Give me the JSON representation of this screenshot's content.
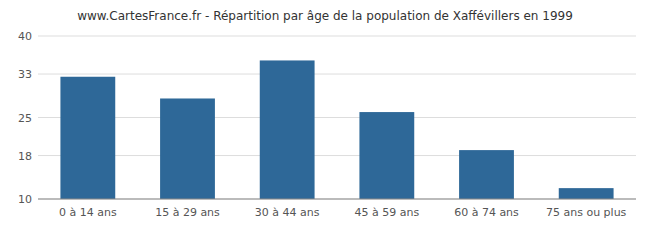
{
  "chart_data": {
    "type": "bar",
    "title": "www.CartesFrance.fr - Répartition par âge de la population de Xaffévillers en 1999",
    "categories": [
      "0 à 14 ans",
      "15 à 29 ans",
      "30 à 44 ans",
      "45 à 59 ans",
      "60 à 74 ans",
      "75 ans ou plus"
    ],
    "values": [
      32.5,
      28.5,
      35.5,
      26.0,
      19.0,
      12.0
    ],
    "color": "#2e6898",
    "ylim": [
      10,
      40
    ],
    "yticks": [
      10,
      18,
      25,
      33,
      40
    ],
    "grid": true
  }
}
